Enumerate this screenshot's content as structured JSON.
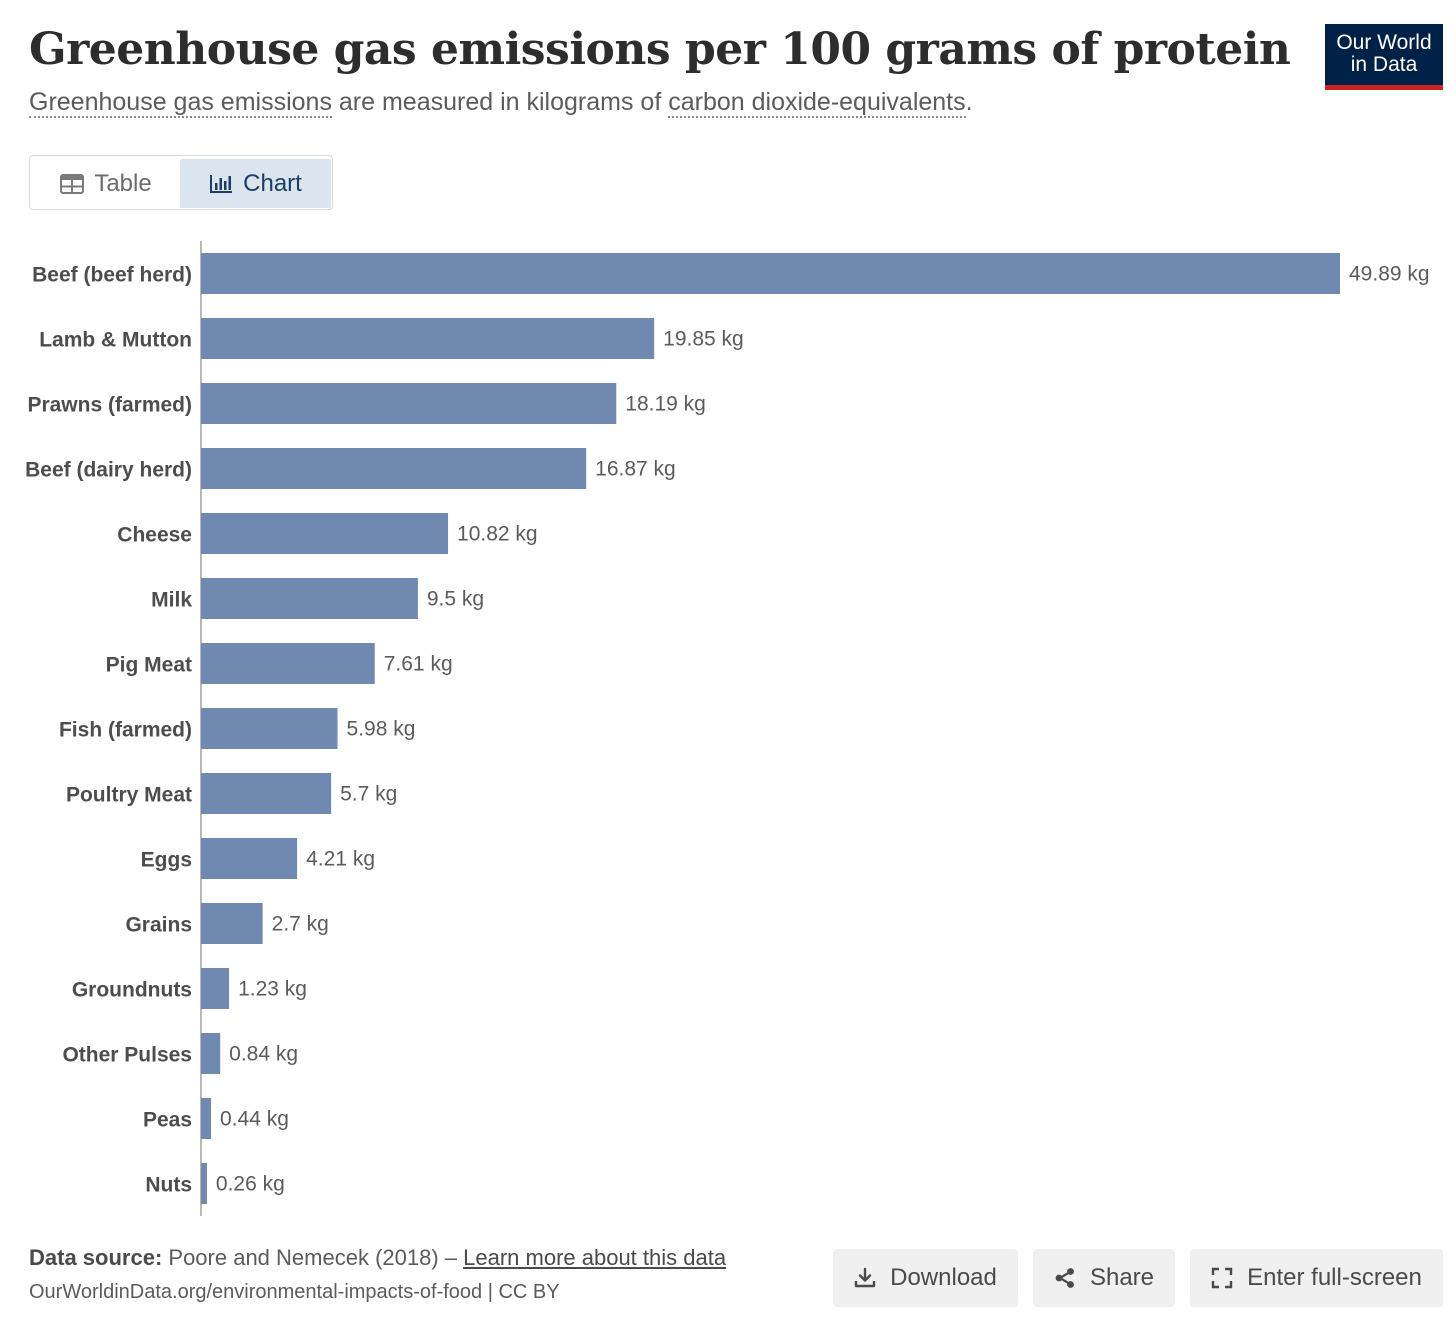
{
  "header": {
    "title": "Greenhouse gas emissions per 100 grams of protein",
    "subtitle_link1": "Greenhouse gas emissions",
    "subtitle_mid": " are measured in kilograms of ",
    "subtitle_link2": "carbon dioxide-equivalents",
    "subtitle_end": ".",
    "logo_line1": "Our World",
    "logo_line2": "in Data"
  },
  "tabs": {
    "table_label": "Table",
    "chart_label": "Chart"
  },
  "colors": {
    "bar": "#6f89b1",
    "logo_bg": "#002147",
    "logo_accent": "#ce261e",
    "active_tab": "#dbe5f0"
  },
  "chart_data": {
    "type": "bar",
    "orientation": "horizontal",
    "unit_suffix": " kg",
    "categories": [
      "Beef (beef herd)",
      "Lamb & Mutton",
      "Prawns (farmed)",
      "Beef (dairy herd)",
      "Cheese",
      "Milk",
      "Pig Meat",
      "Fish (farmed)",
      "Poultry Meat",
      "Eggs",
      "Grains",
      "Groundnuts",
      "Other Pulses",
      "Peas",
      "Nuts"
    ],
    "values": [
      49.89,
      19.85,
      18.19,
      16.87,
      10.82,
      9.5,
      7.61,
      5.98,
      5.7,
      4.21,
      2.7,
      1.23,
      0.84,
      0.44,
      0.26
    ],
    "labels": [
      "49.89 kg",
      "19.85 kg",
      "18.19 kg",
      "16.87 kg",
      "10.82 kg",
      "9.5 kg",
      "7.61 kg",
      "5.98 kg",
      "5.7 kg",
      "4.21 kg",
      "2.7 kg",
      "1.23 kg",
      "0.84 kg",
      "0.44 kg",
      "0.26 kg"
    ],
    "xlim": [
      0,
      49.89
    ],
    "title": "Greenhouse gas emissions per 100 grams of protein",
    "xlabel": "",
    "ylabel": ""
  },
  "footer": {
    "source_label": "Data source:",
    "source_text": " Poore and Nemecek (2018) – ",
    "learn_more": "Learn more about this data",
    "url_line": "OurWorldinData.org/environmental-impacts-of-food | CC BY",
    "download_label": "Download",
    "share_label": "Share",
    "fullscreen_label": "Enter full-screen"
  }
}
